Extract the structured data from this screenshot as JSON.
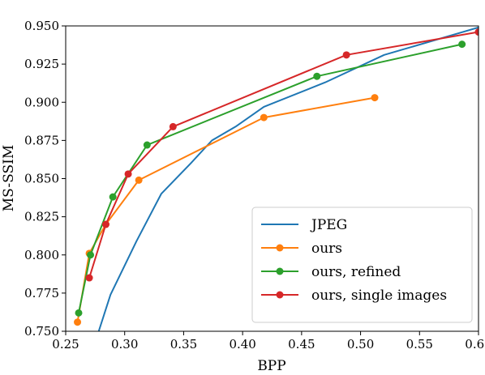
{
  "chart_data": {
    "type": "line",
    "title": "",
    "xlabel": "BPP",
    "ylabel": "MS-SSIM",
    "xlim": [
      0.25,
      0.6
    ],
    "ylim": [
      0.75,
      0.95
    ],
    "xticks": [
      "0.25",
      "0.30",
      "0.35",
      "0.40",
      "0.45",
      "0.50",
      "0.55",
      "0.60"
    ],
    "yticks": [
      "0.750",
      "0.775",
      "0.800",
      "0.825",
      "0.850",
      "0.875",
      "0.900",
      "0.925",
      "0.950"
    ],
    "grid": false,
    "legend_position": "lower-right",
    "series": [
      {
        "name": "JPEG",
        "color": "#1f77b4",
        "marker": false,
        "x": [
          0.278,
          0.288,
          0.31,
          0.331,
          0.356,
          0.374,
          0.394,
          0.418,
          0.47,
          0.52,
          0.6
        ],
        "y": [
          0.75,
          0.774,
          0.809,
          0.84,
          0.86,
          0.875,
          0.884,
          0.897,
          0.913,
          0.931,
          0.949
        ]
      },
      {
        "name": "ours",
        "color": "#ff7f0e",
        "marker": true,
        "x": [
          0.26,
          0.27,
          0.284,
          0.312,
          0.418,
          0.512
        ],
        "y": [
          0.756,
          0.801,
          0.82,
          0.849,
          0.89,
          0.903
        ]
      },
      {
        "name": "ours, refined",
        "color": "#2ca02c",
        "marker": true,
        "x": [
          0.261,
          0.271,
          0.29,
          0.319,
          0.463,
          0.586
        ],
        "y": [
          0.762,
          0.8,
          0.838,
          0.872,
          0.917,
          0.938
        ]
      },
      {
        "name": "ours, single images",
        "color": "#d62728",
        "marker": true,
        "x": [
          0.27,
          0.284,
          0.303,
          0.341,
          0.488,
          0.6
        ],
        "y": [
          0.785,
          0.82,
          0.853,
          0.884,
          0.931,
          0.946
        ]
      }
    ]
  }
}
